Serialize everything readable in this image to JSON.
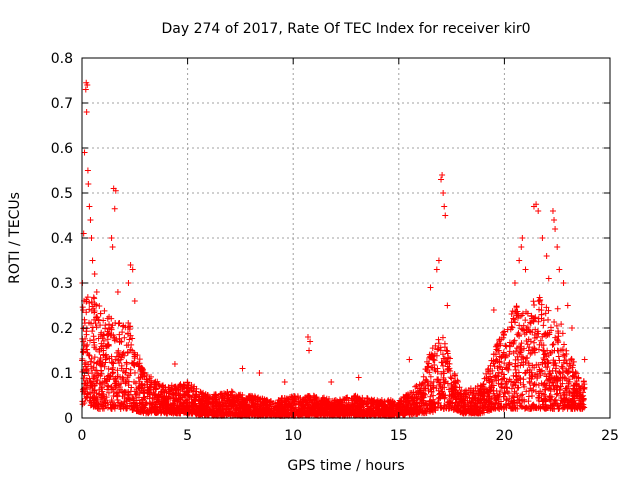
{
  "chart_data": {
    "type": "scatter",
    "title": "Day 274 of 2017, Rate Of TEC Index for receiver kir0",
    "xlabel": "GPS time / hours",
    "ylabel": "ROTI / TECUs",
    "xlim": [
      0,
      25
    ],
    "ylim": [
      0,
      0.8
    ],
    "xticks": [
      0,
      5,
      10,
      15,
      20,
      25
    ],
    "xtick_labels": [
      "0",
      "5",
      "10",
      "15",
      "20",
      "25"
    ],
    "yticks": [
      0,
      0.1,
      0.2,
      0.3,
      0.4,
      0.5,
      0.6,
      0.7,
      0.8
    ],
    "ytick_labels": [
      "0",
      "0.1",
      "0.2",
      "0.3",
      "0.4",
      "0.5",
      "0.6",
      "0.7",
      "0.8"
    ],
    "grid": "dotted",
    "marker": "+",
    "color": "#ff0000",
    "envelope": {
      "x": [
        0.0,
        0.3,
        0.8,
        1.5,
        2.2,
        3.0,
        4.0,
        5.0,
        6.0,
        7.0,
        8.0,
        9.0,
        10.0,
        11.0,
        12.0,
        13.0,
        14.0,
        15.0,
        16.0,
        16.5,
        17.0,
        17.5,
        18.0,
        19.0,
        19.5,
        20.0,
        20.5,
        21.0,
        21.5,
        22.0,
        22.5,
        23.0,
        23.8
      ],
      "low": [
        0.03,
        0.03,
        0.02,
        0.02,
        0.02,
        0.01,
        0.01,
        0.01,
        0.005,
        0.005,
        0.005,
        0.005,
        0.005,
        0.005,
        0.005,
        0.005,
        0.005,
        0.005,
        0.01,
        0.01,
        0.02,
        0.02,
        0.01,
        0.01,
        0.02,
        0.02,
        0.02,
        0.02,
        0.02,
        0.02,
        0.02,
        0.02,
        0.02
      ],
      "high": [
        0.25,
        0.3,
        0.25,
        0.22,
        0.22,
        0.1,
        0.07,
        0.08,
        0.05,
        0.06,
        0.05,
        0.04,
        0.05,
        0.05,
        0.04,
        0.05,
        0.04,
        0.04,
        0.08,
        0.15,
        0.2,
        0.12,
        0.06,
        0.08,
        0.15,
        0.2,
        0.25,
        0.25,
        0.28,
        0.25,
        0.25,
        0.15,
        0.08
      ]
    },
    "peaks": [
      {
        "x": 0.02,
        "y": 0.3
      },
      {
        "x": 0.05,
        "y": 0.24
      },
      {
        "x": 0.08,
        "y": 0.41
      },
      {
        "x": 0.12,
        "y": 0.59
      },
      {
        "x": 0.18,
        "y": 0.73
      },
      {
        "x": 0.2,
        "y": 0.745
      },
      {
        "x": 0.25,
        "y": 0.74
      },
      {
        "x": 0.22,
        "y": 0.68
      },
      {
        "x": 0.28,
        "y": 0.55
      },
      {
        "x": 0.3,
        "y": 0.52
      },
      {
        "x": 0.35,
        "y": 0.47
      },
      {
        "x": 0.4,
        "y": 0.44
      },
      {
        "x": 0.45,
        "y": 0.4
      },
      {
        "x": 0.5,
        "y": 0.35
      },
      {
        "x": 0.6,
        "y": 0.32
      },
      {
        "x": 0.7,
        "y": 0.28
      },
      {
        "x": 1.4,
        "y": 0.4
      },
      {
        "x": 1.45,
        "y": 0.38
      },
      {
        "x": 1.5,
        "y": 0.51
      },
      {
        "x": 1.55,
        "y": 0.465
      },
      {
        "x": 1.6,
        "y": 0.505
      },
      {
        "x": 1.7,
        "y": 0.28
      },
      {
        "x": 2.2,
        "y": 0.3
      },
      {
        "x": 2.3,
        "y": 0.34
      },
      {
        "x": 2.4,
        "y": 0.33
      },
      {
        "x": 2.5,
        "y": 0.26
      },
      {
        "x": 4.4,
        "y": 0.12
      },
      {
        "x": 7.6,
        "y": 0.11
      },
      {
        "x": 8.4,
        "y": 0.1
      },
      {
        "x": 9.6,
        "y": 0.08
      },
      {
        "x": 10.7,
        "y": 0.18
      },
      {
        "x": 10.75,
        "y": 0.15
      },
      {
        "x": 10.8,
        "y": 0.17
      },
      {
        "x": 11.8,
        "y": 0.08
      },
      {
        "x": 13.1,
        "y": 0.09
      },
      {
        "x": 15.5,
        "y": 0.13
      },
      {
        "x": 16.5,
        "y": 0.29
      },
      {
        "x": 16.8,
        "y": 0.33
      },
      {
        "x": 16.9,
        "y": 0.35
      },
      {
        "x": 17.0,
        "y": 0.53
      },
      {
        "x": 17.05,
        "y": 0.54
      },
      {
        "x": 17.1,
        "y": 0.5
      },
      {
        "x": 17.15,
        "y": 0.47
      },
      {
        "x": 17.2,
        "y": 0.45
      },
      {
        "x": 17.3,
        "y": 0.25
      },
      {
        "x": 19.5,
        "y": 0.24
      },
      {
        "x": 20.5,
        "y": 0.3
      },
      {
        "x": 20.7,
        "y": 0.35
      },
      {
        "x": 20.8,
        "y": 0.38
      },
      {
        "x": 20.85,
        "y": 0.4
      },
      {
        "x": 21.0,
        "y": 0.33
      },
      {
        "x": 21.4,
        "y": 0.47
      },
      {
        "x": 21.5,
        "y": 0.475
      },
      {
        "x": 21.6,
        "y": 0.46
      },
      {
        "x": 21.8,
        "y": 0.4
      },
      {
        "x": 22.0,
        "y": 0.36
      },
      {
        "x": 22.1,
        "y": 0.31
      },
      {
        "x": 22.3,
        "y": 0.46
      },
      {
        "x": 22.35,
        "y": 0.44
      },
      {
        "x": 22.4,
        "y": 0.42
      },
      {
        "x": 22.5,
        "y": 0.38
      },
      {
        "x": 22.6,
        "y": 0.33
      },
      {
        "x": 22.8,
        "y": 0.3
      },
      {
        "x": 23.0,
        "y": 0.25
      },
      {
        "x": 23.2,
        "y": 0.2
      },
      {
        "x": 23.8,
        "y": 0.13
      }
    ]
  }
}
